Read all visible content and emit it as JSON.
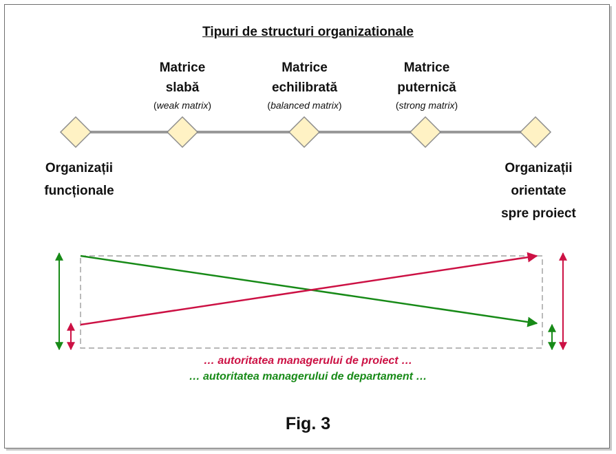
{
  "title": "Tipuri de structuri organizationale",
  "matrices": [
    {
      "line1": "Matrice",
      "line2": "slabă",
      "en": "weak matrix"
    },
    {
      "line1": "Matrice",
      "line2": "echilibrată",
      "en": "balanced matrix"
    },
    {
      "line1": "Matrice",
      "line2": "puternică",
      "en": "strong matrix"
    }
  ],
  "left_end": {
    "line1": "Organizații",
    "line2": "funcționale"
  },
  "right_end": {
    "line1": "Organizații",
    "line2": "orientate",
    "line3": "spre proiect"
  },
  "legend": {
    "project": "… autoritatea managerului de proiect …",
    "department": "… autoritatea managerului de departament …"
  },
  "figure_label": "Fig. 3",
  "colors": {
    "project": "#cc1144",
    "department": "#178a17",
    "node_fill": "#fff2c4",
    "node_stroke": "#8c8c8c",
    "axis": "#999999"
  }
}
